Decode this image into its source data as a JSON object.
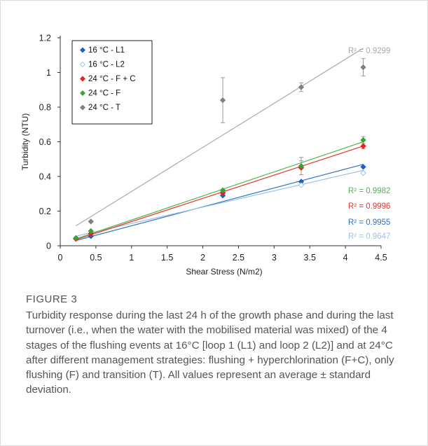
{
  "chart_data": {
    "type": "scatter",
    "xlabel": "Shear Stress (N/m2)",
    "ylabel": "Turbidity (NTU)",
    "xlim": [
      0,
      4.5
    ],
    "ylim": [
      0,
      1.2
    ],
    "x_ticks": [
      "0",
      "0.5",
      "1",
      "1.5",
      "2",
      "2.5",
      "3",
      "3.5",
      "4",
      "4.5"
    ],
    "y_ticks": [
      "0",
      "0.2",
      "0.4",
      "0.6",
      "0.8",
      "1",
      "1.2"
    ],
    "legend_position": "top-left",
    "series": [
      {
        "name": "16 °C - L1",
        "color": "#1f5fbf",
        "trend_color": "#2e75c8",
        "r2": "R² = 0.9955",
        "x": [
          0.22,
          0.43,
          2.28,
          3.38,
          4.25
        ],
        "y": [
          0.04,
          0.055,
          0.29,
          0.37,
          0.455
        ],
        "err": [
          0,
          0,
          0,
          0,
          0
        ],
        "trend": [
          0.22,
          0.03,
          4.25,
          0.47
        ]
      },
      {
        "name": "16 °C - L2",
        "color": "#8ab4e0",
        "trend_color": "#9bc2e6",
        "r2": "R² = 0.9647",
        "x": [
          0.22,
          0.43,
          2.28,
          3.38,
          4.25
        ],
        "y": [
          0.045,
          0.07,
          0.31,
          0.35,
          0.42
        ],
        "err": [
          0,
          0,
          0,
          0,
          0
        ],
        "trend": [
          0.22,
          0.055,
          4.25,
          0.435
        ]
      },
      {
        "name": "24 °C - F + C",
        "color": "#e8201a",
        "trend_color": "#e8342a",
        "r2": "R² = 0.9996",
        "x": [
          0.22,
          0.43,
          2.28,
          3.38,
          4.25
        ],
        "y": [
          0.04,
          0.07,
          0.305,
          0.45,
          0.575
        ],
        "err": [
          0,
          0,
          0,
          0.04,
          0.015
        ],
        "trend": [
          0.22,
          0.035,
          4.25,
          0.575
        ]
      },
      {
        "name": "24 °C - F",
        "color": "#3aa335",
        "trend_color": "#55b34f",
        "r2": "R² = 0.9982",
        "x": [
          0.22,
          0.43,
          2.28,
          3.38,
          4.25
        ],
        "y": [
          0.045,
          0.085,
          0.32,
          0.46,
          0.61
        ],
        "err": [
          0,
          0,
          0,
          0.05,
          0.02
        ],
        "trend": [
          0.22,
          0.04,
          4.25,
          0.6
        ]
      },
      {
        "name": "24 °C - T",
        "color": "#808080",
        "trend_color": "#aaaaaa",
        "r2": "R² = 0.9299",
        "x": [
          0.43,
          2.28,
          3.38,
          4.25
        ],
        "y": [
          0.14,
          0.84,
          0.915,
          1.03
        ],
        "err": [
          0,
          0.13,
          0.025,
          0.05
        ],
        "trend": [
          0.22,
          0.115,
          4.25,
          1.14
        ]
      }
    ]
  },
  "caption": {
    "label": "FIGURE 3",
    "text": "Turbidity response during the last 24 h of the growth phase and during the last turnover (i.e., when the water with the mobilised material was mixed) of the 4 stages of the flushing events at 16°C [loop 1 (L1) and loop 2 (L2)] and at 24°C after different management strategies: flushing + hyperchlorination (F+C), only flushing (F) and transition (T). All values represent an average ± standard deviation."
  }
}
